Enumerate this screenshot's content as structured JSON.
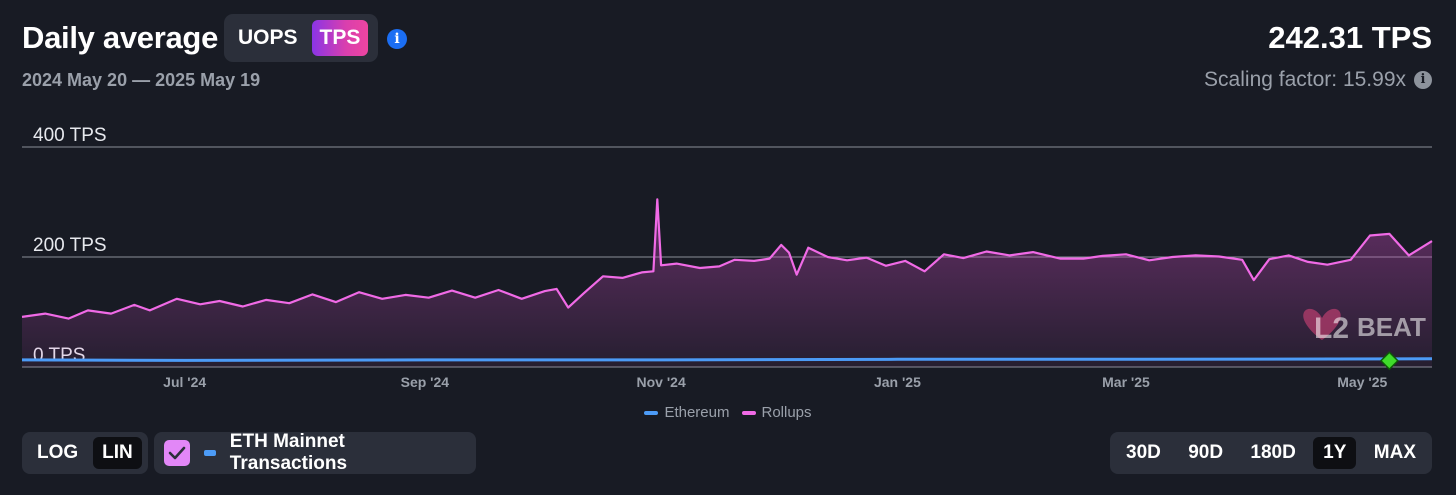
{
  "header": {
    "title": "Daily average",
    "unit_options": [
      "UOPS",
      "TPS"
    ],
    "unit_selected": "TPS",
    "date_range": "2024 May 20 — 2025 May 19",
    "value": "242.31 TPS",
    "scaling_label": "Scaling factor: 15.99x"
  },
  "colors": {
    "background": "#181b24",
    "rollups": "#f06ae6",
    "ethereum": "#4c9bf6",
    "grid": "#8a8f98",
    "marker": "#3fdc2a"
  },
  "chart_data": {
    "type": "area",
    "y_tick_labels": [
      "400 TPS",
      "200 TPS",
      "0 TPS"
    ],
    "y_ticks": [
      400,
      200,
      0
    ],
    "ylim": [
      0,
      400
    ],
    "x_range": [
      "2024-05-20",
      "2025-05-19"
    ],
    "x_tick_labels": [
      {
        "label": "Jul '24",
        "date": "2024-07-01"
      },
      {
        "label": "Sep '24",
        "date": "2024-09-01"
      },
      {
        "label": "Nov '24",
        "date": "2024-11-01"
      },
      {
        "label": "Jan '25",
        "date": "2025-01-01"
      },
      {
        "label": "Mar '25",
        "date": "2025-03-01"
      },
      {
        "label": "May '25",
        "date": "2025-05-01"
      }
    ],
    "grid": true,
    "legend_position": "bottom-center",
    "series": [
      {
        "name": "Ethereum",
        "points": [
          [
            "2024-05-20",
            13
          ],
          [
            "2024-07-01",
            12
          ],
          [
            "2024-09-01",
            13
          ],
          [
            "2024-11-01",
            13
          ],
          [
            "2025-01-01",
            14
          ],
          [
            "2025-03-01",
            14
          ],
          [
            "2025-05-19",
            15
          ]
        ]
      },
      {
        "name": "Rollups",
        "points": [
          [
            "2024-05-20",
            91
          ],
          [
            "2024-05-26",
            97
          ],
          [
            "2024-06-01",
            88
          ],
          [
            "2024-06-06",
            103
          ],
          [
            "2024-06-12",
            97
          ],
          [
            "2024-06-18",
            113
          ],
          [
            "2024-06-22",
            103
          ],
          [
            "2024-06-29",
            124
          ],
          [
            "2024-07-05",
            114
          ],
          [
            "2024-07-10",
            120
          ],
          [
            "2024-07-16",
            110
          ],
          [
            "2024-07-22",
            122
          ],
          [
            "2024-07-28",
            116
          ],
          [
            "2024-08-03",
            132
          ],
          [
            "2024-08-09",
            118
          ],
          [
            "2024-08-15",
            136
          ],
          [
            "2024-08-21",
            124
          ],
          [
            "2024-08-27",
            131
          ],
          [
            "2024-09-02",
            126
          ],
          [
            "2024-09-08",
            139
          ],
          [
            "2024-09-14",
            126
          ],
          [
            "2024-09-20",
            140
          ],
          [
            "2024-09-26",
            124
          ],
          [
            "2024-10-02",
            138
          ],
          [
            "2024-10-05",
            142
          ],
          [
            "2024-10-08",
            108
          ],
          [
            "2024-10-12",
            134
          ],
          [
            "2024-10-17",
            165
          ],
          [
            "2024-10-22",
            162
          ],
          [
            "2024-10-27",
            172
          ],
          [
            "2024-10-30",
            174
          ],
          [
            "2024-10-31",
            305
          ],
          [
            "2024-11-01",
            185
          ],
          [
            "2024-11-05",
            188
          ],
          [
            "2024-11-11",
            180
          ],
          [
            "2024-11-16",
            183
          ],
          [
            "2024-11-20",
            195
          ],
          [
            "2024-11-25",
            193
          ],
          [
            "2024-11-29",
            197
          ],
          [
            "2024-12-02",
            222
          ],
          [
            "2024-12-04",
            208
          ],
          [
            "2024-12-06",
            168
          ],
          [
            "2024-12-09",
            217
          ],
          [
            "2024-12-14",
            200
          ],
          [
            "2024-12-19",
            194
          ],
          [
            "2024-12-24",
            199
          ],
          [
            "2024-12-29",
            184
          ],
          [
            "2025-01-03",
            193
          ],
          [
            "2025-01-08",
            174
          ],
          [
            "2025-01-13",
            205
          ],
          [
            "2025-01-18",
            198
          ],
          [
            "2025-01-24",
            210
          ],
          [
            "2025-01-30",
            203
          ],
          [
            "2025-02-05",
            209
          ],
          [
            "2025-02-12",
            197
          ],
          [
            "2025-02-18",
            197
          ],
          [
            "2025-02-23",
            202
          ],
          [
            "2025-03-01",
            205
          ],
          [
            "2025-03-07",
            194
          ],
          [
            "2025-03-13",
            200
          ],
          [
            "2025-03-19",
            203
          ],
          [
            "2025-03-25",
            201
          ],
          [
            "2025-03-31",
            195
          ],
          [
            "2025-04-03",
            158
          ],
          [
            "2025-04-07",
            196
          ],
          [
            "2025-04-12",
            203
          ],
          [
            "2025-04-17",
            191
          ],
          [
            "2025-04-22",
            186
          ],
          [
            "2025-04-28",
            195
          ],
          [
            "2025-05-03",
            239
          ],
          [
            "2025-05-08",
            242
          ],
          [
            "2025-05-13",
            203
          ],
          [
            "2025-05-19",
            229
          ]
        ]
      }
    ]
  },
  "legend": {
    "ethereum_label": "Ethereum",
    "rollups_label": "Rollups"
  },
  "controls": {
    "scale_options": [
      "LOG",
      "LIN"
    ],
    "scale_selected": "LIN",
    "eth_mainnet_label": "ETH Mainnet Transactions",
    "eth_mainnet_checked": true,
    "range_options": [
      "30D",
      "90D",
      "180D",
      "1Y",
      "MAX"
    ],
    "range_selected": "1Y"
  },
  "watermark": {
    "brand": "L2BEAT"
  }
}
